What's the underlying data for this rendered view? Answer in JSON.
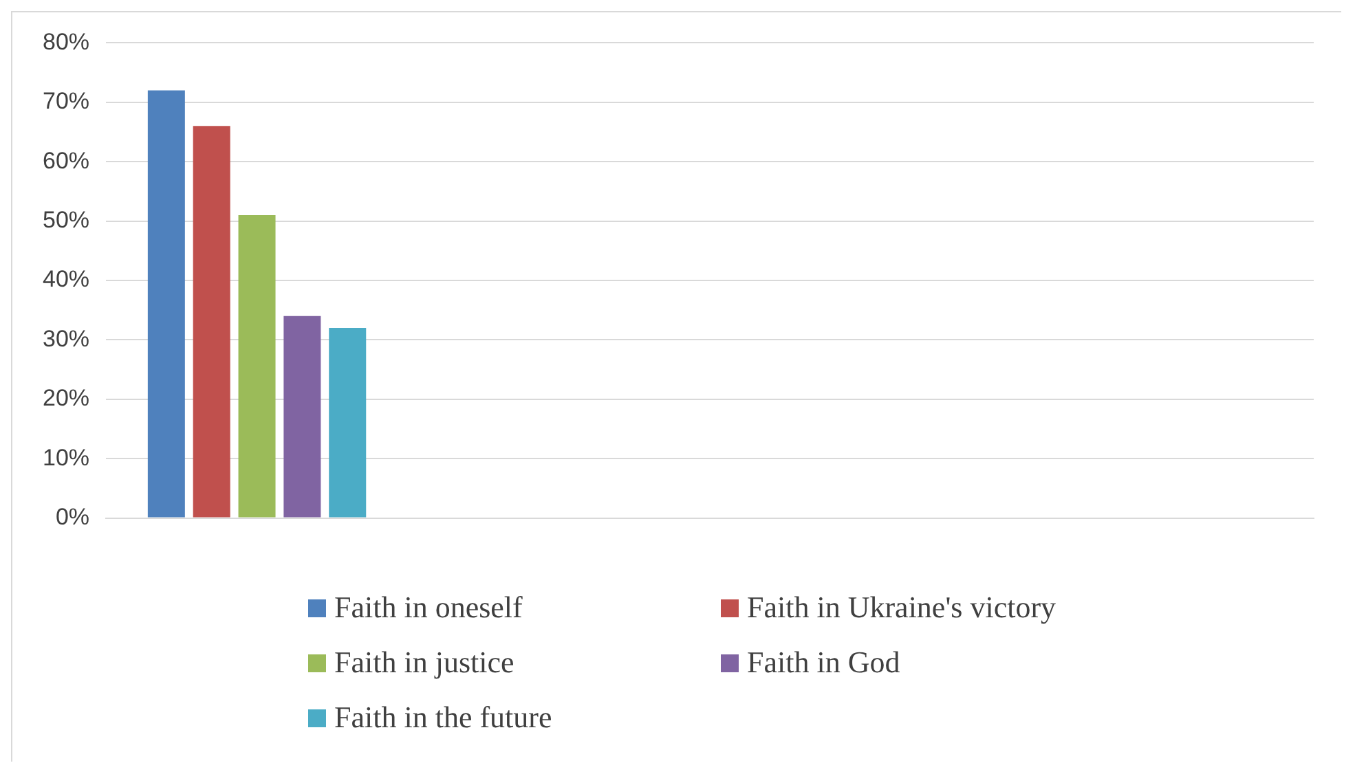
{
  "chart_data": {
    "type": "bar",
    "categories": [
      null,
      null,
      null,
      null
    ],
    "series": [
      {
        "name": "Faith in oneself",
        "color": "#4f81bd",
        "values": [
          72,
          null,
          null,
          null
        ]
      },
      {
        "name": "Faith in Ukraine's victory",
        "color": "#c0504d",
        "values": [
          66,
          null,
          null,
          null
        ]
      },
      {
        "name": "Faith in justice",
        "color": "#9bbb59",
        "values": [
          51,
          null,
          null,
          null
        ]
      },
      {
        "name": "Faith in God",
        "color": "#8064a2",
        "values": [
          34,
          null,
          null,
          null
        ]
      },
      {
        "name": "Faith in the future",
        "color": "#4bacc6",
        "values": [
          32,
          null,
          null,
          null
        ]
      }
    ],
    "ylim": [
      0,
      80
    ],
    "yticks": [
      {
        "value": 0,
        "label": "0%"
      },
      {
        "value": 10,
        "label": "10%"
      },
      {
        "value": 20,
        "label": "20%"
      },
      {
        "value": 30,
        "label": "30%"
      },
      {
        "value": 40,
        "label": "40%"
      },
      {
        "value": 50,
        "label": "50%"
      },
      {
        "value": 60,
        "label": "60%"
      },
      {
        "value": 70,
        "label": "70%"
      },
      {
        "value": 80,
        "label": "80%"
      }
    ],
    "grid": "y",
    "legend": "bottom"
  }
}
